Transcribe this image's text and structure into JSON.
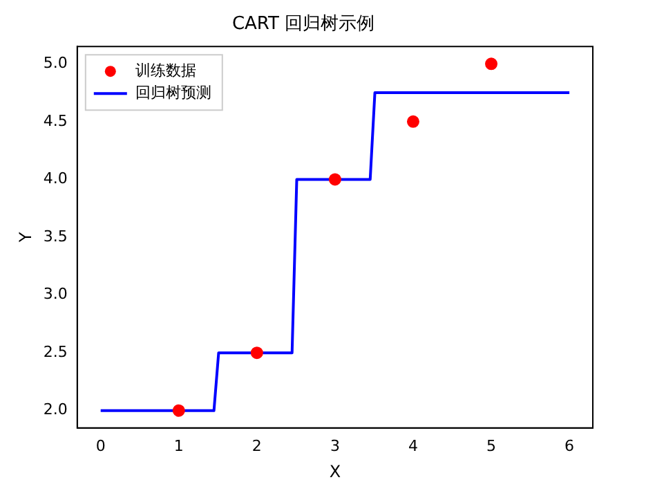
{
  "chart_data": {
    "type": "scatter",
    "title": "CART 回归树示例",
    "xlabel": "X",
    "ylabel": "Y",
    "xlim": [
      -0.3,
      6.3
    ],
    "xticks": [
      0,
      1,
      2,
      3,
      4,
      5,
      6
    ],
    "ylim": [
      1.85,
      5.15
    ],
    "yticks": [
      {
        "value": 2,
        "label": "2.0"
      },
      {
        "value": 2.5,
        "label": "2.5"
      },
      {
        "value": 3,
        "label": "3.0"
      },
      {
        "value": 3.5,
        "label": "3.5"
      },
      {
        "value": 4,
        "label": "4.0"
      },
      {
        "value": 4.5,
        "label": "4.5"
      },
      {
        "value": 5,
        "label": "5.0"
      }
    ],
    "grid": false,
    "legend": "top left",
    "series": [
      {
        "name": "训练数据",
        "type": "scatter",
        "marker": "circle",
        "color": "#ff0000",
        "x": [
          1,
          2,
          3,
          4,
          5
        ],
        "values": [
          2,
          2.5,
          4,
          4.5,
          5
        ]
      },
      {
        "name": "回归树预测",
        "type": "line",
        "marker": "none",
        "color": "#0000ff",
        "x": [
          0,
          1.45,
          1.51,
          2.45,
          2.51,
          3.45,
          3.51,
          6
        ],
        "values": [
          2,
          2,
          2.5,
          2.5,
          4,
          4,
          4.75,
          4.75
        ]
      }
    ]
  }
}
